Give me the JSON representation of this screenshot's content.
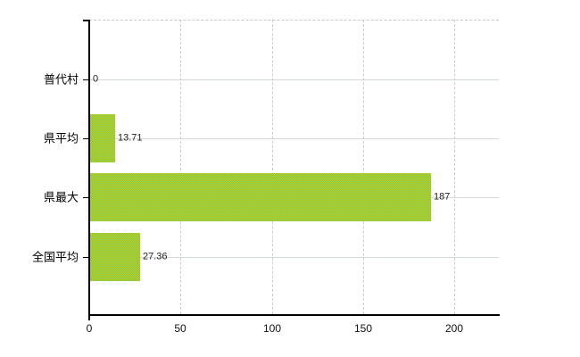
{
  "chart_data": {
    "type": "bar",
    "orientation": "horizontal",
    "title": "",
    "categories": [
      "普代村",
      "県平均",
      "県最大",
      "全国平均"
    ],
    "values": [
      0,
      13.71,
      187,
      27.36
    ],
    "value_labels": [
      "0",
      "13.71",
      "187",
      "27.36"
    ],
    "x_ticks": [
      0,
      50,
      100,
      150,
      200
    ],
    "x_tick_labels": [
      "0",
      "50",
      "100",
      "150",
      "200"
    ],
    "xlim": [
      0,
      224.5
    ],
    "grid": true,
    "legend": false,
    "colors": {
      "bar": "#9fca30",
      "bar_dither_light": "#b2d42c",
      "bar_dither_dark": "#8ec33e",
      "axis": "#000000",
      "grid_horizontal": "#d2dbd2",
      "grid_vertical": "#cfc9d6",
      "plot_border_top": "#c9c6cc",
      "background": "#ffffff"
    }
  }
}
